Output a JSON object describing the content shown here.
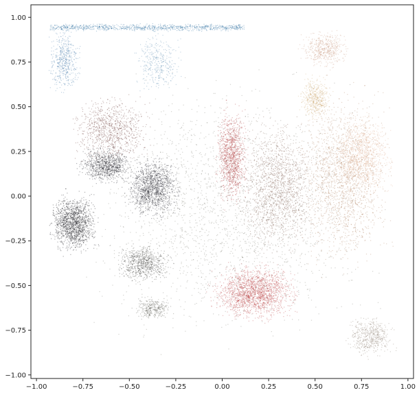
{
  "chart_data": {
    "type": "scatter",
    "title": "",
    "xlabel": "",
    "ylabel": "",
    "xlim": [
      -1.03,
      1.03
    ],
    "ylim": [
      -1.02,
      1.07
    ],
    "grid": false,
    "legend": "none",
    "x_ticks": [
      -1.0,
      -0.75,
      -0.5,
      -0.25,
      0.0,
      0.25,
      0.5,
      0.75,
      1.0
    ],
    "x_tick_labels": [
      "−1.00",
      "−0.75",
      "−0.50",
      "−0.25",
      "0.00",
      "0.25",
      "0.50",
      "0.75",
      "1.00"
    ],
    "y_ticks": [
      1.0,
      0.75,
      0.5,
      0.25,
      0.0,
      -0.25,
      -0.5,
      -0.75,
      -1.0
    ],
    "y_tick_labels": [
      "1.00",
      "0.75",
      "0.50",
      "0.25",
      "0.00",
      "−0.25",
      "−0.50",
      "−0.75",
      "−1.00"
    ],
    "point_style": {
      "size": "tiny",
      "alpha": "low"
    },
    "clusters": [
      {
        "color": "#2f6fa0",
        "shape": "band",
        "x": [
          -0.93,
          0.12
        ],
        "y": [
          0.92,
          0.97
        ],
        "points": 900
      },
      {
        "color": "#4a7fab",
        "shape": "cloud",
        "x": [
          -0.95,
          -0.75
        ],
        "y": [
          0.55,
          0.97
        ],
        "points": 500
      },
      {
        "color": "#5a8ab0",
        "shape": "cloud",
        "x": [
          -0.5,
          -0.2
        ],
        "y": [
          0.55,
          0.95
        ],
        "points": 350
      },
      {
        "color": "#101018",
        "shape": "cloud",
        "x": [
          -0.95,
          -0.65
        ],
        "y": [
          -0.35,
          0.05
        ],
        "points": 1400
      },
      {
        "color": "#15151c",
        "shape": "cloud",
        "x": [
          -0.55,
          -0.2
        ],
        "y": [
          -0.15,
          0.25
        ],
        "points": 1300
      },
      {
        "color": "#1b1b22",
        "shape": "cloud",
        "x": [
          -0.8,
          -0.45
        ],
        "y": [
          0.05,
          0.3
        ],
        "points": 900
      },
      {
        "color": "#3a3a36",
        "shape": "cloud",
        "x": [
          -0.6,
          -0.25
        ],
        "y": [
          -0.5,
          -0.25
        ],
        "points": 700
      },
      {
        "color": "#5a5a50",
        "shape": "cloud",
        "x": [
          -0.5,
          -0.25
        ],
        "y": [
          -0.7,
          -0.55
        ],
        "points": 300
      },
      {
        "color": "#6a3a36",
        "shape": "cloud",
        "x": [
          -0.85,
          -0.35
        ],
        "y": [
          0.15,
          0.6
        ],
        "points": 900
      },
      {
        "color": "#a82a2e",
        "shape": "cloud",
        "x": [
          -0.05,
          0.15
        ],
        "y": [
          -0.1,
          0.55
        ],
        "points": 1100
      },
      {
        "color": "#b8383c",
        "shape": "cloud",
        "x": [
          -0.1,
          0.45
        ],
        "y": [
          -0.72,
          -0.35
        ],
        "points": 1800
      },
      {
        "color": "#7a5a4a",
        "shape": "cloud",
        "x": [
          0.05,
          0.55
        ],
        "y": [
          -0.4,
          0.5
        ],
        "points": 1500
      },
      {
        "color": "#b08060",
        "shape": "cloud",
        "x": [
          0.35,
          0.95
        ],
        "y": [
          -0.5,
          0.7
        ],
        "points": 1800
      },
      {
        "color": "#e0b090",
        "shape": "cloud",
        "x": [
          0.55,
          0.95
        ],
        "y": [
          -0.05,
          0.5
        ],
        "points": 1100
      },
      {
        "color": "#c89a82",
        "shape": "cloud",
        "x": [
          0.4,
          0.7
        ],
        "y": [
          0.7,
          0.95
        ],
        "points": 500
      },
      {
        "color": "#d0b07a",
        "shape": "cloud",
        "x": [
          0.4,
          0.6
        ],
        "y": [
          0.4,
          0.7
        ],
        "points": 500
      },
      {
        "color": "#8a7a6e",
        "shape": "cloud",
        "x": [
          0.65,
          0.95
        ],
        "y": [
          -0.92,
          -0.65
        ],
        "points": 500
      },
      {
        "color": "#7a7a70",
        "shape": "cloud",
        "x": [
          -0.9,
          0.95
        ],
        "y": [
          -0.95,
          0.8
        ],
        "points": 2200
      }
    ]
  }
}
